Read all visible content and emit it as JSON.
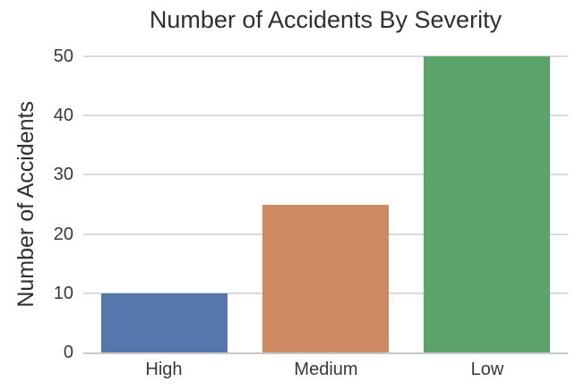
{
  "chart_data": {
    "type": "bar",
    "title": "Number of Accidents By Severity",
    "xlabel": "",
    "ylabel": "Number of Accidents",
    "categories": [
      "High",
      "Medium",
      "Low"
    ],
    "values": [
      10,
      25,
      50
    ],
    "yticks": [
      0,
      10,
      20,
      30,
      40,
      50
    ],
    "ylim": [
      0,
      50
    ],
    "grid": "horizontal",
    "legend": "none",
    "background_color": "#ffffff",
    "bar_colors": [
      "#5577ab",
      "#cd8a61",
      "#5aa36c"
    ],
    "gridline_color": "#dadada",
    "axis_line_color": "#c8c8c8",
    "text_color": "#2f2f2f"
  }
}
